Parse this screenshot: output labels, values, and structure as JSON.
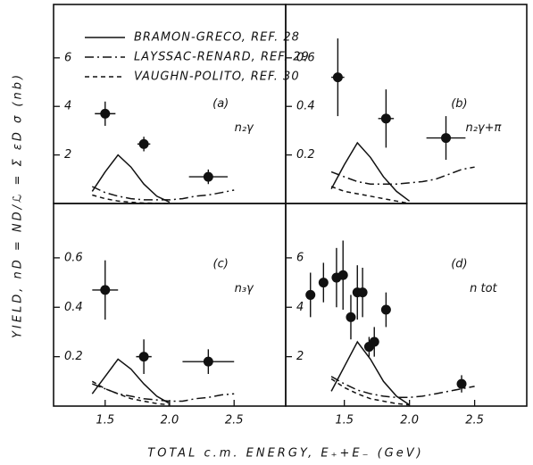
{
  "ylabel": "YIELD,  nD = ND/ℒ = Σ εD σ   (nb)",
  "xlabel": "TOTAL c.m. ENERGY,  E₊+E₋   (GeV)",
  "chart_data": [
    {
      "type": "line",
      "label": "(a)",
      "annotation": "n₂γ",
      "legend": "upper left",
      "xlim": [
        1.1,
        2.9
      ],
      "ylim": [
        0,
        8.2
      ],
      "yticks": [
        2,
        4,
        6
      ],
      "series": [
        {
          "name": "BRAMON-GRECO, REF. 28",
          "color": "#111111",
          "dash": "solid",
          "x": [
            1.4,
            1.5,
            1.6,
            1.7,
            1.8,
            1.9,
            2.0
          ],
          "values": [
            0.5,
            1.3,
            2.0,
            1.5,
            0.8,
            0.3,
            0.05
          ]
        },
        {
          "name": "LAYSSAC-RENARD, REF. 29",
          "color": "#111111",
          "dash": "dash-dot",
          "x": [
            1.4,
            1.5,
            1.6,
            1.7,
            1.8,
            1.9,
            2.0,
            2.1,
            2.2,
            2.3,
            2.4,
            2.5
          ],
          "values": [
            0.7,
            0.45,
            0.3,
            0.2,
            0.15,
            0.15,
            0.15,
            0.2,
            0.3,
            0.35,
            0.45,
            0.55
          ]
        },
        {
          "name": "VAUGHN-POLITO, REF. 30",
          "color": "#111111",
          "dash": "dashed",
          "x": [
            1.4,
            1.5,
            1.6,
            1.7,
            1.8,
            1.9,
            2.0
          ],
          "values": [
            0.35,
            0.2,
            0.1,
            0.05,
            0.02,
            0.01,
            0
          ]
        },
        {
          "type": "scatter",
          "color": "#111111",
          "x": [
            1.5,
            1.8,
            2.3
          ],
          "values": [
            3.7,
            2.45,
            1.1
          ],
          "yerr": [
            0.5,
            0.3,
            0.3
          ],
          "xerr": [
            0.08,
            0.05,
            0.15
          ]
        }
      ]
    },
    {
      "type": "line",
      "label": "(b)",
      "annotation": "n₂γ+π",
      "xlim": [
        1.05,
        2.9
      ],
      "ylim": [
        0,
        0.82
      ],
      "yticks": [
        0.2,
        0.4,
        0.6
      ],
      "series": [
        {
          "color": "#111111",
          "dash": "solid",
          "x": [
            1.4,
            1.5,
            1.6,
            1.7,
            1.8,
            1.9,
            2.0
          ],
          "values": [
            0.06,
            0.16,
            0.25,
            0.19,
            0.11,
            0.05,
            0.01
          ]
        },
        {
          "color": "#111111",
          "dash": "dash-dot",
          "x": [
            1.4,
            1.5,
            1.6,
            1.7,
            1.8,
            1.9,
            2.0,
            2.1,
            2.2,
            2.3,
            2.4,
            2.5
          ],
          "values": [
            0.13,
            0.11,
            0.09,
            0.08,
            0.08,
            0.08,
            0.085,
            0.09,
            0.1,
            0.12,
            0.14,
            0.15
          ]
        },
        {
          "color": "#111111",
          "dash": "dashed",
          "x": [
            1.4,
            1.5,
            1.6,
            1.7,
            1.8,
            1.9,
            2.0
          ],
          "values": [
            0.07,
            0.05,
            0.04,
            0.03,
            0.02,
            0.01,
            0
          ]
        },
        {
          "type": "scatter",
          "color": "#111111",
          "x": [
            1.45,
            1.82,
            2.28
          ],
          "values": [
            0.52,
            0.35,
            0.27
          ],
          "yerr": [
            0.16,
            0.12,
            0.09
          ],
          "xerr": [
            0.05,
            0.06,
            0.15
          ]
        }
      ]
    },
    {
      "type": "line",
      "label": "(c)",
      "annotation": "n₃γ",
      "xlim": [
        1.1,
        2.9
      ],
      "ylim": [
        0,
        0.82
      ],
      "yticks": [
        0.2,
        0.4,
        0.6
      ],
      "xticks": [
        1.5,
        {
          "value": 2,
          "label": "2.0"
        },
        2.5
      ],
      "series": [
        {
          "color": "#111111",
          "dash": "solid",
          "x": [
            1.4,
            1.5,
            1.6,
            1.7,
            1.8,
            1.9,
            2.0
          ],
          "values": [
            0.05,
            0.12,
            0.19,
            0.15,
            0.09,
            0.04,
            0.01
          ]
        },
        {
          "color": "#111111",
          "dash": "dash-dot",
          "x": [
            1.4,
            1.5,
            1.6,
            1.7,
            1.8,
            1.9,
            2.0,
            2.1,
            2.2,
            2.3,
            2.4,
            2.5
          ],
          "values": [
            0.09,
            0.07,
            0.05,
            0.04,
            0.03,
            0.025,
            0.02,
            0.02,
            0.03,
            0.035,
            0.045,
            0.05
          ]
        },
        {
          "color": "#111111",
          "dash": "dashed",
          "x": [
            1.4,
            1.5,
            1.6,
            1.7,
            1.8,
            1.9,
            2.0
          ],
          "values": [
            0.1,
            0.07,
            0.05,
            0.03,
            0.02,
            0.01,
            0.005
          ]
        },
        {
          "type": "scatter",
          "color": "#111111",
          "x": [
            1.5,
            1.8,
            2.3
          ],
          "values": [
            0.47,
            0.2,
            0.18
          ],
          "yerr": [
            0.12,
            0.07,
            0.05
          ],
          "xerr": [
            0.1,
            0.06,
            0.2
          ]
        }
      ]
    },
    {
      "type": "line",
      "label": "(d)",
      "annotation": "n tot",
      "xlim": [
        1.05,
        2.9
      ],
      "ylim": [
        0,
        8.2
      ],
      "yticks": [
        2,
        4,
        6
      ],
      "xticks": [
        1.5,
        {
          "value": 2,
          "label": "2.0"
        },
        2.5
      ],
      "series": [
        {
          "color": "#111111",
          "dash": "solid",
          "x": [
            1.4,
            1.5,
            1.6,
            1.7,
            1.8,
            1.9,
            2.0
          ],
          "values": [
            0.6,
            1.6,
            2.6,
            1.9,
            1.0,
            0.4,
            0.05
          ]
        },
        {
          "color": "#111111",
          "dash": "dash-dot",
          "x": [
            1.4,
            1.5,
            1.6,
            1.7,
            1.8,
            1.9,
            2.0,
            2.1,
            2.2,
            2.3,
            2.4,
            2.5
          ],
          "values": [
            1.2,
            0.9,
            0.65,
            0.5,
            0.4,
            0.35,
            0.35,
            0.4,
            0.5,
            0.6,
            0.7,
            0.8
          ]
        },
        {
          "color": "#111111",
          "dash": "dashed",
          "x": [
            1.4,
            1.5,
            1.6,
            1.7,
            1.8,
            1.9,
            2.0
          ],
          "values": [
            1.1,
            0.75,
            0.5,
            0.3,
            0.2,
            0.1,
            0.05
          ]
        },
        {
          "type": "scatter",
          "color": "#111111",
          "x": [
            1.24,
            1.34,
            1.44,
            1.49,
            1.55,
            1.6,
            1.64,
            1.69,
            1.73,
            1.82,
            2.4
          ],
          "values": [
            4.5,
            5.0,
            5.2,
            5.3,
            3.6,
            4.6,
            4.6,
            2.4,
            2.6,
            3.9,
            0.9
          ],
          "yerr": [
            0.9,
            0.8,
            1.2,
            1.4,
            0.9,
            1.1,
            1.0,
            0.4,
            0.6,
            0.7,
            0.35
          ]
        }
      ]
    }
  ]
}
